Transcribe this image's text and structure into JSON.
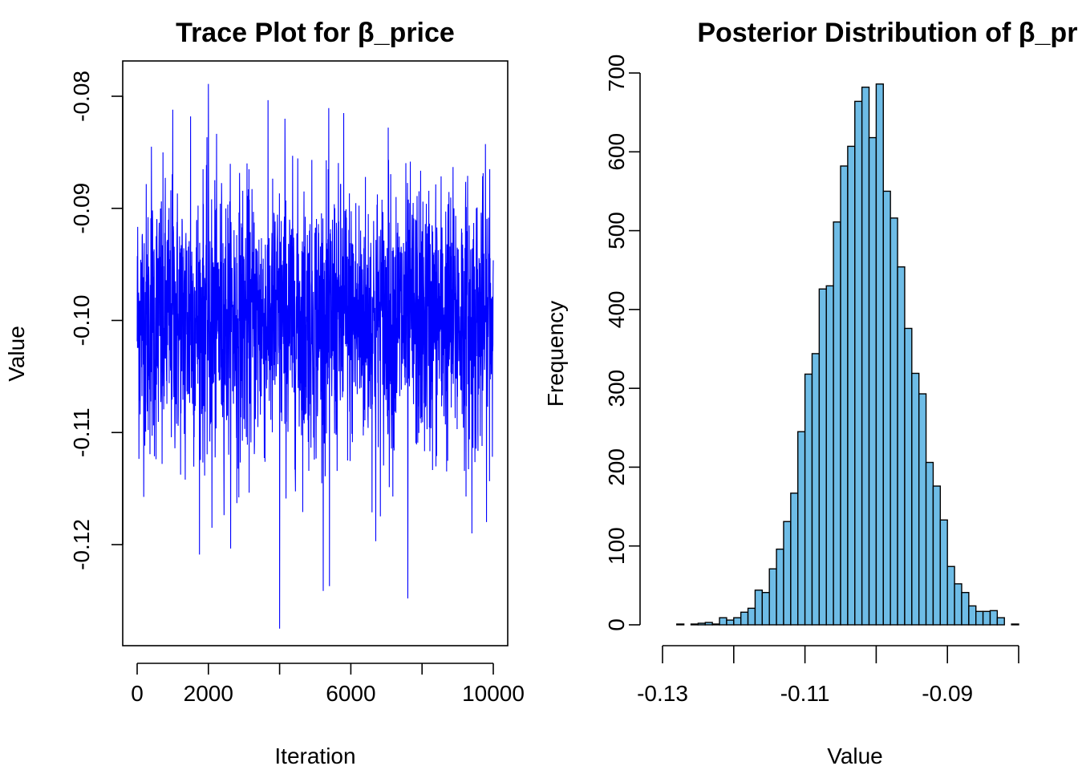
{
  "chart_data": [
    {
      "type": "line",
      "title": "Trace Plot for β_price",
      "xlabel": "Iteration",
      "ylabel": "Value",
      "xlim": [
        0,
        10000
      ],
      "ylim": [
        -0.128,
        -0.0775
      ],
      "x_ticks": [
        0,
        2000,
        4000,
        6000,
        8000,
        10000
      ],
      "x_tick_labels": [
        "0",
        "2000",
        "",
        "6000",
        "",
        "10000"
      ],
      "y_ticks": [
        -0.12,
        -0.11,
        -0.1,
        -0.09,
        -0.08
      ],
      "y_tick_labels": [
        "-0.12",
        "-0.11",
        "-0.10",
        "-0.09",
        "-0.08"
      ],
      "grid": false,
      "line_color": "#0000ff",
      "series": [
        {
          "n_iterations": 10000,
          "center": -0.1,
          "sd": 0.006,
          "min": -0.1275,
          "max": -0.0789,
          "spikes": [
            {
              "x": 400,
              "y": -0.0845
            },
            {
              "x": 700,
              "y": -0.1128
            },
            {
              "x": 1000,
              "y": -0.0812
            },
            {
              "x": 1500,
              "y": -0.0818
            },
            {
              "x": 1350,
              "y": -0.1142
            },
            {
              "x": 2000,
              "y": -0.0789
            },
            {
              "x": 2100,
              "y": -0.1185
            },
            {
              "x": 2800,
              "y": -0.1163
            },
            {
              "x": 4000,
              "y": -0.1275
            },
            {
              "x": 4150,
              "y": -0.082
            },
            {
              "x": 5400,
              "y": -0.1237
            },
            {
              "x": 5800,
              "y": -0.0815
            },
            {
              "x": 6700,
              "y": -0.1197
            },
            {
              "x": 7050,
              "y": -0.0828
            },
            {
              "x": 7600,
              "y": -0.1248
            },
            {
              "x": 9400,
              "y": -0.119
            },
            {
              "x": 9900,
              "y": -0.0865
            }
          ]
        }
      ]
    },
    {
      "type": "bar",
      "title": "Posterior Distribution of β_price",
      "xlabel": "Value",
      "ylabel": "Frequency",
      "xlim": [
        -0.13,
        -0.08
      ],
      "ylim": [
        0,
        700
      ],
      "x_ticks": [
        -0.13,
        -0.12,
        -0.11,
        -0.1,
        -0.09,
        -0.08
      ],
      "x_tick_labels": [
        "-0.13",
        "",
        "-0.11",
        "",
        "-0.09",
        ""
      ],
      "y_ticks": [
        0,
        100,
        200,
        300,
        400,
        500,
        600,
        700
      ],
      "y_tick_labels": [
        "0",
        "100",
        "200",
        "300",
        "400",
        "500",
        "600",
        "700"
      ],
      "bar_color": "#6ebce6",
      "bin_width": 0.001,
      "bin_start": -0.128,
      "values": [
        1,
        0,
        1,
        2,
        3,
        1,
        9,
        6,
        9,
        16,
        21,
        44,
        41,
        71,
        96,
        131,
        167,
        245,
        318,
        344,
        426,
        430,
        511,
        582,
        607,
        664,
        682,
        618,
        686,
        550,
        516,
        454,
        376,
        319,
        293,
        206,
        176,
        133,
        74,
        52,
        41,
        24,
        17,
        17,
        18,
        9,
        0,
        1
      ]
    }
  ]
}
